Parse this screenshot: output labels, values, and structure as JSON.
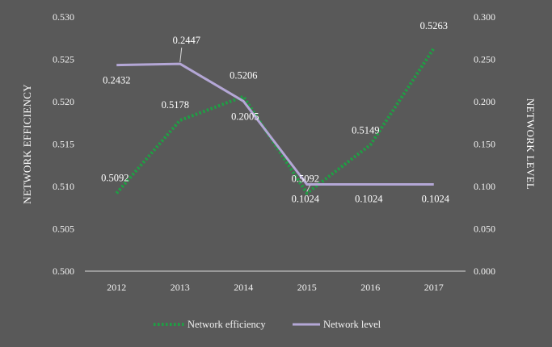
{
  "chart_data": {
    "type": "line",
    "categories": [
      "2012",
      "2013",
      "2014",
      "2015",
      "2016",
      "2017"
    ],
    "y_left": {
      "label": "NETWORK EFFICIENCY",
      "range": [
        0.5,
        0.53
      ],
      "ticks": [
        "0.500",
        "0.505",
        "0.510",
        "0.515",
        "0.520",
        "0.525",
        "0.530"
      ]
    },
    "y_right": {
      "label": "NETWORK LEVEL",
      "range": [
        0.0,
        0.3
      ],
      "ticks": [
        "0.000",
        "0.050",
        "0.100",
        "0.150",
        "0.200",
        "0.250",
        "0.300"
      ]
    },
    "series": [
      {
        "name": "Network efficiency",
        "axis": "left",
        "color": "#1f9e44",
        "style": "dotted",
        "values": [
          0.5092,
          0.5178,
          0.5206,
          0.5092,
          0.5149,
          0.5263
        ],
        "labels": [
          "0.5092",
          "0.5178",
          "0.5206",
          "0.5092",
          "0.5149",
          "0.5263"
        ]
      },
      {
        "name": "Network level",
        "axis": "right",
        "color": "#b4a7d6",
        "style": "solid",
        "values": [
          0.2432,
          0.2447,
          0.2005,
          0.1024,
          0.1024,
          0.1024
        ],
        "labels": [
          "0.2432",
          "0.2447",
          "0.2005",
          "0.1024",
          "0.1024",
          "0.1024"
        ]
      }
    ],
    "grid": false,
    "legend": "bottom"
  }
}
